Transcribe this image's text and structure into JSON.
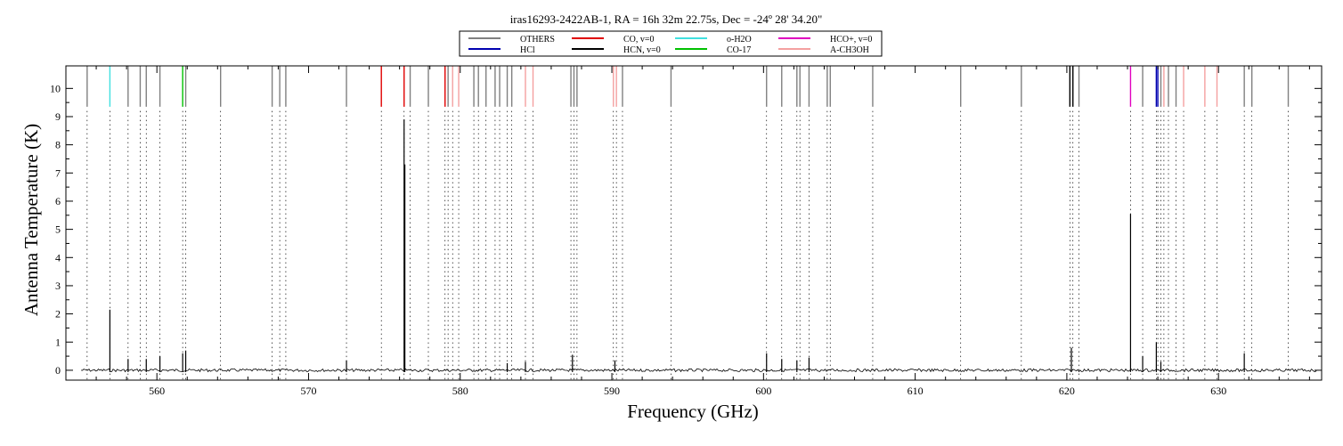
{
  "chart_data": {
    "type": "line",
    "title": "iras16293-2422AB-1, RA = 16h 32m 22.75s, Dec = -24º 28' 34.20\"",
    "xlabel": "Frequency (GHz)",
    "ylabel": "Antenna Temperature (K)",
    "xlim": [
      554.0,
      636.8
    ],
    "ylim": [
      -0.35,
      10.8
    ],
    "xticks": [
      560,
      570,
      580,
      590,
      600,
      610,
      620,
      630
    ],
    "yticks": [
      0,
      1,
      2,
      3,
      4,
      5,
      6,
      7,
      8,
      9,
      10
    ],
    "legend": {
      "placement": "top-center",
      "entries": [
        {
          "name": "OTHERS",
          "color": "#808080"
        },
        {
          "name": "HCl",
          "color": "#0000b0"
        },
        {
          "name": "CO, v=0",
          "color": "#e00000"
        },
        {
          "name": "HCN, v=0",
          "color": "#000000"
        },
        {
          "name": "o-H2O",
          "color": "#40e0e0"
        },
        {
          "name": "CO-17",
          "color": "#00c000"
        },
        {
          "name": "HCO+, v=0",
          "color": "#e000c0"
        },
        {
          "name": "A-CH3OH",
          "color": "#f4a0a0"
        }
      ]
    },
    "line_markers": [
      {
        "x": 555.4,
        "color": "#808080"
      },
      {
        "x": 556.9,
        "color": "#40e0e0"
      },
      {
        "x": 558.1,
        "color": "#808080"
      },
      {
        "x": 558.9,
        "color": "#808080"
      },
      {
        "x": 559.3,
        "color": "#808080"
      },
      {
        "x": 560.2,
        "color": "#808080"
      },
      {
        "x": 561.7,
        "color": "#00c000"
      },
      {
        "x": 561.9,
        "color": "#808080"
      },
      {
        "x": 564.2,
        "color": "#808080"
      },
      {
        "x": 567.6,
        "color": "#808080"
      },
      {
        "x": 568.1,
        "color": "#808080"
      },
      {
        "x": 568.5,
        "color": "#808080"
      },
      {
        "x": 572.5,
        "color": "#808080"
      },
      {
        "x": 574.8,
        "color": "#e00000"
      },
      {
        "x": 576.3,
        "color": "#e00000"
      },
      {
        "x": 576.7,
        "color": "#808080"
      },
      {
        "x": 577.9,
        "color": "#808080"
      },
      {
        "x": 579.0,
        "color": "#e00000"
      },
      {
        "x": 579.2,
        "color": "#808080"
      },
      {
        "x": 579.5,
        "color": "#f4a0a0"
      },
      {
        "x": 579.9,
        "color": "#f4a0a0"
      },
      {
        "x": 580.9,
        "color": "#808080"
      },
      {
        "x": 581.2,
        "color": "#808080"
      },
      {
        "x": 581.7,
        "color": "#808080"
      },
      {
        "x": 582.3,
        "color": "#808080"
      },
      {
        "x": 582.6,
        "color": "#808080"
      },
      {
        "x": 583.1,
        "color": "#808080"
      },
      {
        "x": 583.4,
        "color": "#808080"
      },
      {
        "x": 584.3,
        "color": "#f4a0a0"
      },
      {
        "x": 584.8,
        "color": "#f4a0a0"
      },
      {
        "x": 587.3,
        "color": "#808080"
      },
      {
        "x": 587.5,
        "color": "#808080"
      },
      {
        "x": 587.7,
        "color": "#808080"
      },
      {
        "x": 590.1,
        "color": "#f4a0a0"
      },
      {
        "x": 590.3,
        "color": "#f4a0a0"
      },
      {
        "x": 590.7,
        "color": "#808080"
      },
      {
        "x": 593.9,
        "color": "#808080"
      },
      {
        "x": 600.2,
        "color": "#808080"
      },
      {
        "x": 601.2,
        "color": "#808080"
      },
      {
        "x": 602.2,
        "color": "#808080"
      },
      {
        "x": 602.4,
        "color": "#808080"
      },
      {
        "x": 603.0,
        "color": "#808080"
      },
      {
        "x": 604.2,
        "color": "#808080"
      },
      {
        "x": 604.4,
        "color": "#808080"
      },
      {
        "x": 607.2,
        "color": "#808080"
      },
      {
        "x": 613.0,
        "color": "#808080"
      },
      {
        "x": 617.0,
        "color": "#808080"
      },
      {
        "x": 620.2,
        "color": "#000000"
      },
      {
        "x": 620.4,
        "color": "#000000"
      },
      {
        "x": 620.8,
        "color": "#808080"
      },
      {
        "x": 624.2,
        "color": "#e000c0"
      },
      {
        "x": 625.0,
        "color": "#808080"
      },
      {
        "x": 625.9,
        "color": "#0000b0"
      },
      {
        "x": 626.0,
        "color": "#0000b0"
      },
      {
        "x": 626.2,
        "color": "#808080"
      },
      {
        "x": 626.4,
        "color": "#f4a0a0"
      },
      {
        "x": 626.7,
        "color": "#808080"
      },
      {
        "x": 627.2,
        "color": "#808080"
      },
      {
        "x": 627.7,
        "color": "#f4a0a0"
      },
      {
        "x": 629.1,
        "color": "#f4a0a0"
      },
      {
        "x": 629.9,
        "color": "#f4a0a0"
      },
      {
        "x": 631.7,
        "color": "#808080"
      },
      {
        "x": 632.2,
        "color": "#808080"
      },
      {
        "x": 634.6,
        "color": "#808080"
      }
    ],
    "peaks": [
      {
        "x": 556.9,
        "y": 2.15
      },
      {
        "x": 558.1,
        "y": 0.4
      },
      {
        "x": 559.3,
        "y": 0.4
      },
      {
        "x": 560.2,
        "y": 0.5
      },
      {
        "x": 561.7,
        "y": 0.6
      },
      {
        "x": 561.9,
        "y": 0.7
      },
      {
        "x": 572.5,
        "y": 0.35
      },
      {
        "x": 576.3,
        "y": 8.9
      },
      {
        "x": 576.35,
        "y": 7.3
      },
      {
        "x": 583.1,
        "y": 0.25
      },
      {
        "x": 584.3,
        "y": 0.3
      },
      {
        "x": 587.4,
        "y": 0.55
      },
      {
        "x": 590.2,
        "y": 0.35
      },
      {
        "x": 600.2,
        "y": 0.6
      },
      {
        "x": 601.2,
        "y": 0.4
      },
      {
        "x": 602.2,
        "y": 0.35
      },
      {
        "x": 603.0,
        "y": 0.45
      },
      {
        "x": 620.3,
        "y": 0.8
      },
      {
        "x": 624.2,
        "y": 5.55
      },
      {
        "x": 625.0,
        "y": 0.5
      },
      {
        "x": 625.9,
        "y": 1.0
      },
      {
        "x": 626.2,
        "y": 0.3
      },
      {
        "x": 631.7,
        "y": 0.6
      }
    ],
    "baseline": 0.0
  }
}
